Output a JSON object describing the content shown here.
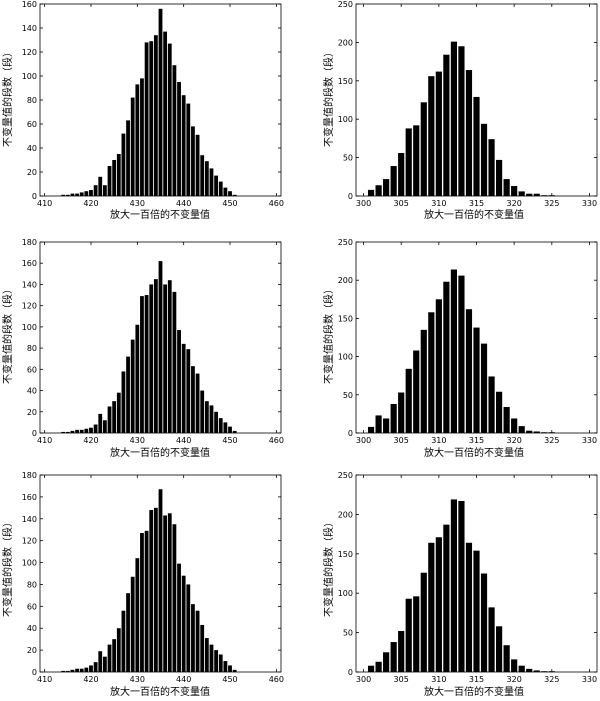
{
  "chart_data": [
    {
      "type": "bar",
      "xlabel": "放大一百倍的不变量值",
      "ylabel": "不变量值的段数（段）",
      "xlim": [
        409,
        461
      ],
      "ylim": [
        0,
        160
      ],
      "xticks": [
        410,
        420,
        430,
        440,
        450,
        460
      ],
      "yticks": [
        0,
        20,
        40,
        60,
        80,
        100,
        120,
        140,
        160
      ],
      "grid": false,
      "x": [
        414,
        415,
        416,
        417,
        418,
        419,
        420,
        421,
        422,
        423,
        424,
        425,
        426,
        427,
        428,
        429,
        430,
        431,
        432,
        433,
        434,
        435,
        436,
        437,
        438,
        439,
        440,
        441,
        442,
        443,
        444,
        445,
        446,
        447,
        448,
        449,
        450,
        451
      ],
      "values": [
        1,
        1,
        2,
        2,
        3,
        4,
        5,
        9,
        16,
        9,
        25,
        30,
        35,
        52,
        63,
        82,
        93,
        98,
        128,
        129,
        134,
        156,
        137,
        127,
        109,
        95,
        84,
        77,
        58,
        51,
        34,
        29,
        23,
        17,
        12,
        7,
        4,
        1
      ]
    },
    {
      "type": "bar",
      "xlabel": "放大一百倍的不变量值",
      "ylabel": "不变量值的段数（段）",
      "xlim": [
        299,
        331
      ],
      "ylim": [
        0,
        250
      ],
      "xticks": [
        300,
        305,
        310,
        315,
        320,
        325,
        330
      ],
      "yticks": [
        0,
        50,
        100,
        150,
        200,
        250
      ],
      "grid": false,
      "x": [
        301,
        302,
        303,
        304,
        305,
        306,
        307,
        308,
        309,
        310,
        311,
        312,
        313,
        314,
        315,
        316,
        317,
        318,
        319,
        320,
        321,
        322,
        323,
        324,
        325
      ],
      "values": [
        8,
        14,
        22,
        39,
        56,
        88,
        92,
        122,
        156,
        162,
        184,
        201,
        195,
        164,
        129,
        94,
        74,
        47,
        22,
        13,
        6,
        3,
        3,
        1,
        1
      ]
    },
    {
      "type": "bar",
      "xlabel": "放大一百倍的不变量值",
      "ylabel": "不变量值的段数（段）",
      "xlim": [
        409,
        461
      ],
      "ylim": [
        0,
        180
      ],
      "xticks": [
        410,
        420,
        430,
        440,
        450,
        460
      ],
      "yticks": [
        0,
        20,
        40,
        60,
        80,
        100,
        120,
        140,
        160,
        180
      ],
      "grid": false,
      "x": [
        414,
        415,
        416,
        417,
        418,
        419,
        420,
        421,
        422,
        423,
        424,
        425,
        426,
        427,
        428,
        429,
        430,
        431,
        432,
        433,
        434,
        435,
        436,
        437,
        438,
        439,
        440,
        441,
        442,
        443,
        444,
        445,
        446,
        447,
        448,
        449,
        450,
        451
      ],
      "values": [
        1,
        1,
        2,
        3,
        3,
        4,
        5,
        8,
        18,
        12,
        25,
        30,
        38,
        58,
        72,
        88,
        102,
        129,
        130,
        140,
        145,
        162,
        140,
        144,
        133,
        97,
        84,
        79,
        63,
        56,
        40,
        30,
        26,
        20,
        14,
        10,
        6,
        2
      ]
    },
    {
      "type": "bar",
      "xlabel": "放大一百倍的不变量值",
      "ylabel": "不变量值的段数（段）",
      "xlim": [
        299,
        331
      ],
      "ylim": [
        0,
        250
      ],
      "xticks": [
        300,
        305,
        310,
        315,
        320,
        325,
        330
      ],
      "yticks": [
        0,
        50,
        100,
        150,
        200,
        250
      ],
      "grid": false,
      "x": [
        301,
        302,
        303,
        304,
        305,
        306,
        307,
        308,
        309,
        310,
        311,
        312,
        313,
        314,
        315,
        316,
        317,
        318,
        319,
        320,
        321,
        322,
        323,
        324,
        325
      ],
      "values": [
        8,
        23,
        19,
        38,
        53,
        84,
        108,
        135,
        158,
        175,
        198,
        214,
        206,
        162,
        138,
        117,
        74,
        54,
        34,
        19,
        9,
        3,
        2,
        1,
        1
      ]
    },
    {
      "type": "bar",
      "xlabel": "放大一百倍的不变量值",
      "ylabel": "不变量值的段数（段）",
      "xlim": [
        409,
        461
      ],
      "ylim": [
        0,
        180
      ],
      "xticks": [
        410,
        420,
        430,
        440,
        450,
        460
      ],
      "yticks": [
        0,
        20,
        40,
        60,
        80,
        100,
        120,
        140,
        160,
        180
      ],
      "grid": false,
      "x": [
        414,
        415,
        416,
        417,
        418,
        419,
        420,
        421,
        422,
        423,
        424,
        425,
        426,
        427,
        428,
        429,
        430,
        431,
        432,
        433,
        434,
        435,
        436,
        437,
        438,
        439,
        440,
        441,
        442,
        443,
        444,
        445,
        446,
        447,
        448,
        449,
        450,
        451
      ],
      "values": [
        1,
        1,
        2,
        3,
        3,
        4,
        6,
        9,
        19,
        14,
        25,
        30,
        40,
        56,
        72,
        87,
        104,
        127,
        129,
        148,
        150,
        167,
        143,
        145,
        135,
        99,
        88,
        80,
        62,
        56,
        43,
        31,
        25,
        20,
        16,
        10,
        6,
        2
      ]
    },
    {
      "type": "bar",
      "xlabel": "放大一百倍的不变量值",
      "ylabel": "不变量值的段数（段）",
      "xlim": [
        299,
        331
      ],
      "ylim": [
        0,
        250
      ],
      "xticks": [
        300,
        305,
        310,
        315,
        320,
        325,
        330
      ],
      "yticks": [
        0,
        50,
        100,
        150,
        200,
        250
      ],
      "grid": false,
      "x": [
        301,
        302,
        303,
        304,
        305,
        306,
        307,
        308,
        309,
        310,
        311,
        312,
        313,
        314,
        315,
        316,
        317,
        318,
        319,
        320,
        321,
        322,
        323,
        324,
        325
      ],
      "values": [
        8,
        13,
        25,
        38,
        52,
        93,
        96,
        126,
        164,
        171,
        187,
        219,
        217,
        164,
        154,
        125,
        82,
        58,
        34,
        16,
        8,
        4,
        2,
        1,
        1
      ]
    }
  ]
}
